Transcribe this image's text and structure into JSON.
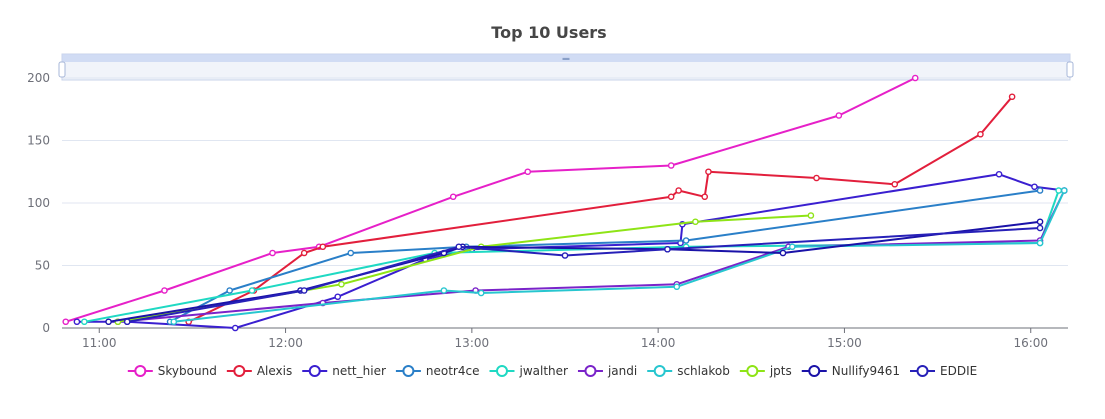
{
  "chart_data": {
    "type": "line",
    "title": "Top 10 Users",
    "xlabel": "",
    "ylabel": "",
    "x_unit": "time (hours)",
    "xlim": [
      10.8,
      16.2
    ],
    "ylim": [
      0,
      200
    ],
    "y_ticks": [
      0,
      50,
      100,
      150,
      200
    ],
    "x_ticks": [
      {
        "value": 11,
        "label": "11:00"
      },
      {
        "value": 12,
        "label": "12:00"
      },
      {
        "value": 13,
        "label": "13:00"
      },
      {
        "value": 14,
        "label": "14:00"
      },
      {
        "value": 15,
        "label": "15:00"
      },
      {
        "value": 16,
        "label": "16:00"
      }
    ],
    "grid": true,
    "legend_position": "bottom",
    "has_zoom_slider": true,
    "series": [
      {
        "name": "Skybound",
        "color": "#e620c8",
        "points": [
          [
            10.82,
            5
          ],
          [
            11.35,
            30
          ],
          [
            11.93,
            60
          ],
          [
            12.18,
            65
          ],
          [
            12.9,
            105
          ],
          [
            13.3,
            125
          ],
          [
            14.07,
            130
          ],
          [
            14.97,
            170
          ],
          [
            15.38,
            200
          ]
        ]
      },
      {
        "name": "Alexis",
        "color": "#e21f3c",
        "points": [
          [
            11.48,
            5
          ],
          [
            11.83,
            30
          ],
          [
            12.1,
            60
          ],
          [
            12.2,
            65
          ],
          [
            14.07,
            105
          ],
          [
            14.11,
            110
          ],
          [
            14.25,
            105
          ],
          [
            14.27,
            125
          ],
          [
            14.85,
            120
          ],
          [
            15.27,
            115
          ],
          [
            15.73,
            155
          ],
          [
            15.9,
            185
          ]
        ]
      },
      {
        "name": "nett_hier",
        "color": "#3a1fd0",
        "points": [
          [
            10.88,
            5
          ],
          [
            11.15,
            5
          ],
          [
            11.73,
            0
          ],
          [
            12.28,
            25
          ],
          [
            12.75,
            55
          ],
          [
            13.0,
            63
          ],
          [
            14.12,
            68
          ],
          [
            14.13,
            83
          ],
          [
            15.83,
            123
          ],
          [
            16.02,
            113
          ],
          [
            16.18,
            110
          ]
        ]
      },
      {
        "name": "neotr4ce",
        "color": "#2a7fc8",
        "points": [
          [
            11.38,
            5
          ],
          [
            11.7,
            30
          ],
          [
            12.35,
            60
          ],
          [
            12.97,
            65
          ],
          [
            14.15,
            70
          ],
          [
            16.05,
            110
          ]
        ]
      },
      {
        "name": "jwalther",
        "color": "#1fd9c3",
        "points": [
          [
            10.92,
            5
          ],
          [
            11.82,
            30
          ],
          [
            12.8,
            60
          ],
          [
            14.15,
            65
          ],
          [
            16.05,
            68
          ],
          [
            16.15,
            110
          ]
        ]
      },
      {
        "name": "jandi",
        "color": "#7a23c9",
        "points": [
          [
            11.1,
            5
          ],
          [
            12.2,
            20
          ],
          [
            13.02,
            30
          ],
          [
            14.1,
            35
          ],
          [
            14.7,
            65
          ],
          [
            16.05,
            70
          ],
          [
            16.18,
            110
          ]
        ]
      },
      {
        "name": "schlakob",
        "color": "#27c6cf",
        "points": [
          [
            11.4,
            5
          ],
          [
            12.85,
            30
          ],
          [
            13.05,
            28
          ],
          [
            14.1,
            33
          ],
          [
            14.72,
            65
          ],
          [
            16.05,
            68
          ],
          [
            16.18,
            110
          ]
        ]
      },
      {
        "name": "jpts",
        "color": "#8ee416",
        "points": [
          [
            11.1,
            5
          ],
          [
            12.3,
            35
          ],
          [
            13.05,
            65
          ],
          [
            14.2,
            85
          ],
          [
            14.82,
            90
          ]
        ]
      },
      {
        "name": "Nullify9461",
        "color": "#1a12a8",
        "points": [
          [
            11.05,
            5
          ],
          [
            12.08,
            30
          ],
          [
            12.85,
            60
          ],
          [
            12.95,
            65
          ],
          [
            14.05,
            63
          ],
          [
            14.67,
            60
          ],
          [
            16.05,
            85
          ]
        ]
      },
      {
        "name": "EDDIE",
        "color": "#2720b8",
        "points": [
          [
            11.15,
            5
          ],
          [
            12.1,
            30
          ],
          [
            12.93,
            65
          ],
          [
            13.5,
            58
          ],
          [
            14.05,
            63
          ],
          [
            16.05,
            80
          ]
        ]
      }
    ]
  }
}
